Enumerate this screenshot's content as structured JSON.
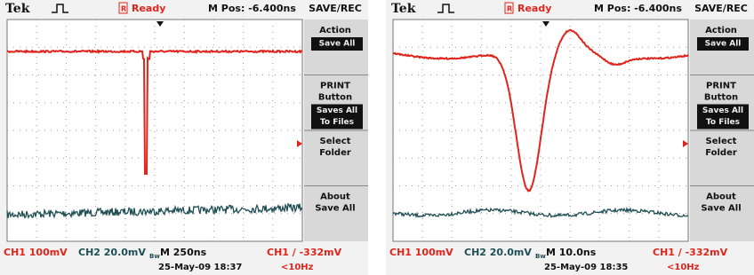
{
  "screens": [
    {
      "header": {
        "brand": "Tek",
        "status_marker": "R",
        "status": "Ready",
        "m_pos": "M Pos: -6.400ns",
        "menu_title": "SAVE/REC"
      },
      "menu": [
        {
          "lines": [
            "Action"
          ],
          "value": [
            "Save All"
          ]
        },
        {
          "lines": [
            "PRINT",
            "Button"
          ],
          "value": [
            "Saves All",
            "To Files"
          ]
        },
        {
          "lines": [
            "Select",
            "Folder"
          ]
        },
        {
          "lines": [
            "About",
            "Save All"
          ]
        }
      ],
      "footer": {
        "ch1": "CH1 100mV",
        "ch2": "CH2 20.0mV",
        "bw": "Bw",
        "timebase": "M 250ns",
        "trigger": "CH1 ∕ -332mV",
        "date": "25-May-09 18:37",
        "freq": "<10Hz"
      }
    },
    {
      "header": {
        "brand": "Tek",
        "status_marker": "R",
        "status": "Ready",
        "m_pos": "M Pos: -6.400ns",
        "menu_title": "SAVE/REC"
      },
      "menu": [
        {
          "lines": [
            "Action"
          ],
          "value": [
            "Save All"
          ]
        },
        {
          "lines": [
            "PRINT",
            "Button"
          ],
          "value": [
            "Saves All",
            "To Files"
          ]
        },
        {
          "lines": [
            "Select",
            "Folder"
          ]
        },
        {
          "lines": [
            "About",
            "Save All"
          ]
        }
      ],
      "footer": {
        "ch1": "CH1 100mV",
        "ch2": "CH2 20.0mV",
        "bw": "Bw",
        "timebase": "M 10.0ns",
        "trigger": "CH1 ∕ -332mV",
        "date": "25-May-09 18:35",
        "freq": "<10Hz"
      }
    }
  ]
}
